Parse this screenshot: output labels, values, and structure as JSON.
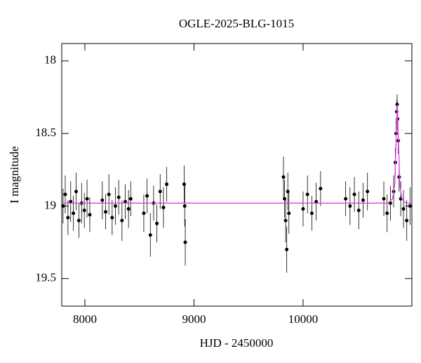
{
  "chart_data": {
    "type": "scatter",
    "title": "OGLE-2025-BLG-1015",
    "x_label": "HJD - 2450000",
    "y_label": "I magnitude",
    "xlim": [
      7788,
      10997
    ],
    "ylim": [
      17.88,
      19.69
    ],
    "y_inverted": true,
    "xticks": [
      8000,
      9000,
      10000
    ],
    "yticks": [
      18,
      18.5,
      19,
      19.5
    ],
    "series": [
      {
        "name": "data",
        "color": "#000000",
        "x": [
          7800,
          7820,
          7845,
          7870,
          7895,
          7920,
          7945,
          7970,
          7995,
          8020,
          8045,
          8160,
          8190,
          8220,
          8250,
          8280,
          8310,
          8340,
          8370,
          8400,
          8420,
          8540,
          8570,
          8600,
          8630,
          8660,
          8690,
          8720,
          8750,
          8910,
          8915,
          8920,
          9820,
          9830,
          9840,
          9850,
          9860,
          9870,
          10000,
          10040,
          10080,
          10120,
          10160,
          10390,
          10430,
          10470,
          10510,
          10550,
          10590,
          10740,
          10770,
          10800,
          10830,
          10845,
          10852,
          10858,
          10862,
          10866,
          10872,
          10880,
          10895,
          10920,
          10950,
          10980
        ],
        "values": [
          19.0,
          18.92,
          19.08,
          18.97,
          19.05,
          18.9,
          19.1,
          18.98,
          19.03,
          18.95,
          19.06,
          18.96,
          19.04,
          18.92,
          19.08,
          19.0,
          18.94,
          19.1,
          18.97,
          19.02,
          18.95,
          19.05,
          18.93,
          19.2,
          18.98,
          19.12,
          18.9,
          19.01,
          18.85,
          18.85,
          19.0,
          19.25,
          18.8,
          18.95,
          19.1,
          19.3,
          18.9,
          19.05,
          19.02,
          18.92,
          19.05,
          18.97,
          18.88,
          18.95,
          19.0,
          18.92,
          19.03,
          18.96,
          18.9,
          18.95,
          19.05,
          18.98,
          18.9,
          18.7,
          18.5,
          18.35,
          18.3,
          18.4,
          18.55,
          18.8,
          18.95,
          19.02,
          19.1,
          19.0
        ],
        "errors": [
          0.12,
          0.13,
          0.12,
          0.14,
          0.12,
          0.13,
          0.12,
          0.14,
          0.12,
          0.13,
          0.12,
          0.13,
          0.12,
          0.14,
          0.12,
          0.13,
          0.12,
          0.14,
          0.12,
          0.13,
          0.12,
          0.13,
          0.12,
          0.15,
          0.12,
          0.13,
          0.12,
          0.14,
          0.12,
          0.13,
          0.14,
          0.16,
          0.14,
          0.13,
          0.15,
          0.16,
          0.13,
          0.14,
          0.12,
          0.13,
          0.12,
          0.13,
          0.12,
          0.12,
          0.13,
          0.12,
          0.13,
          0.12,
          0.13,
          0.12,
          0.13,
          0.12,
          0.11,
          0.1,
          0.09,
          0.08,
          0.07,
          0.08,
          0.09,
          0.1,
          0.12,
          0.13,
          0.14,
          0.13
        ]
      },
      {
        "name": "model",
        "color": "#e040e0",
        "line": true,
        "x": [
          7788,
          10780,
          10820,
          10840,
          10850,
          10858,
          10863,
          10868,
          10876,
          10886,
          10905,
          10940,
          10997
        ],
        "values": [
          18.98,
          18.98,
          18.95,
          18.85,
          18.6,
          18.4,
          18.3,
          18.4,
          18.6,
          18.85,
          18.95,
          18.98,
          18.98
        ]
      }
    ]
  }
}
